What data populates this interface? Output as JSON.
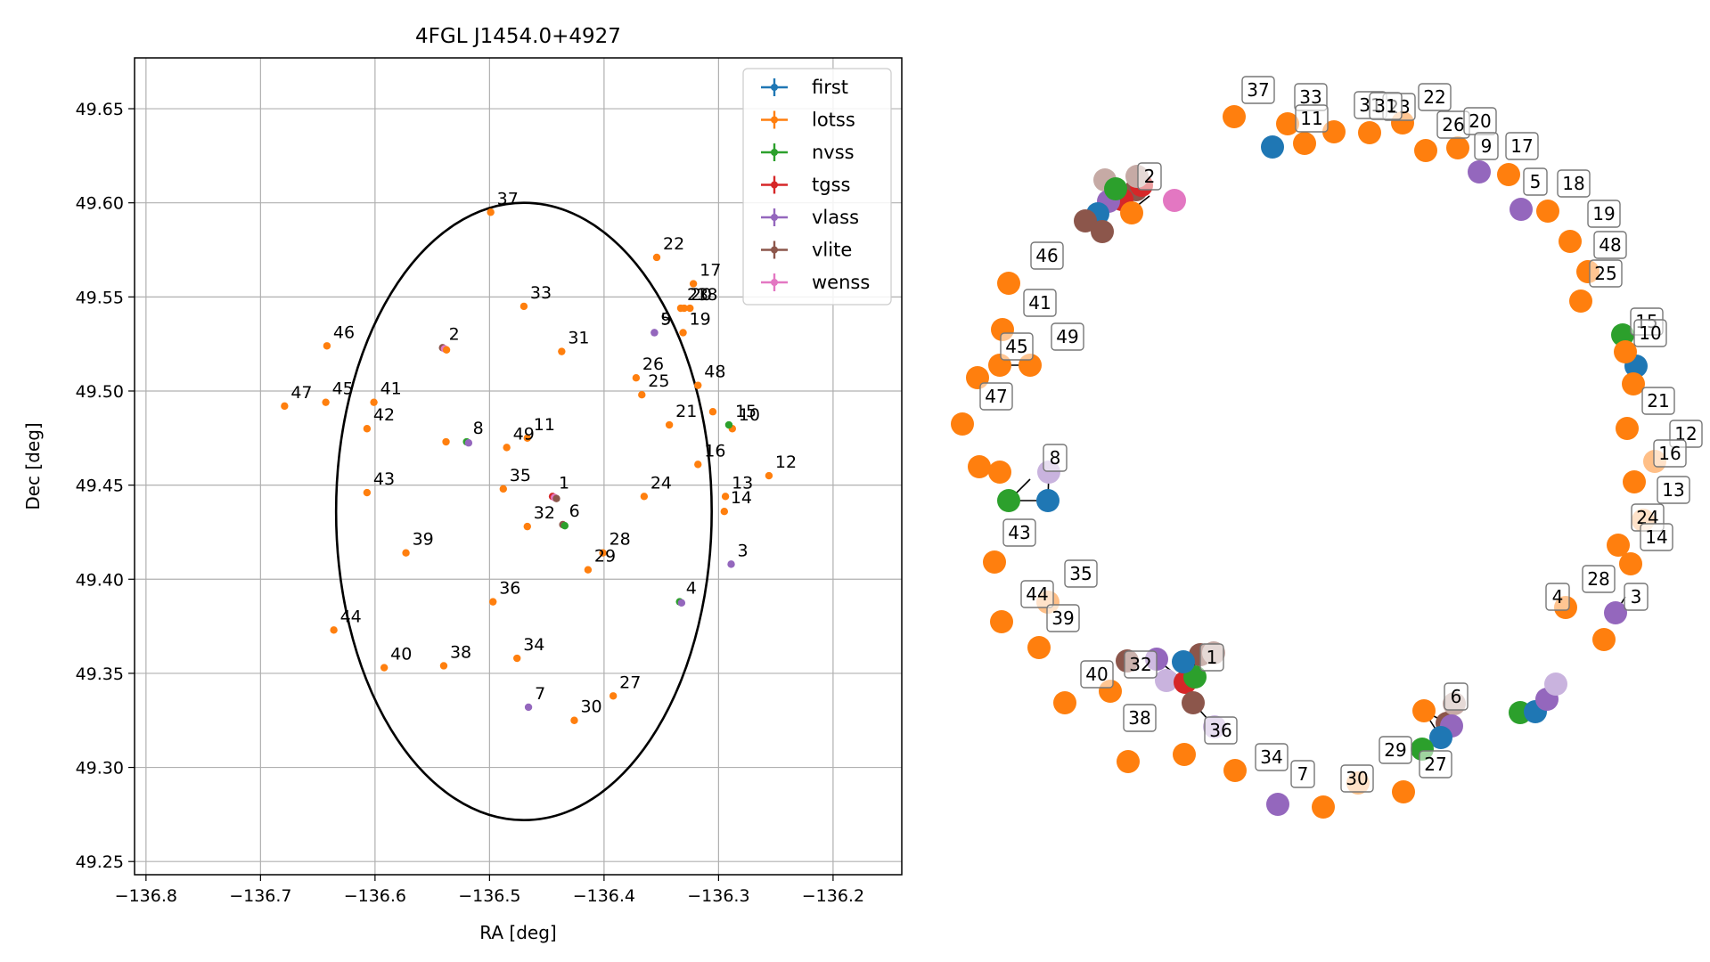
{
  "chart_data": [
    {
      "type": "scatter",
      "title": "4FGL J1454.0+4927",
      "xlabel": "RA [deg]",
      "ylabel": "Dec [deg]",
      "xlim": [
        -136.81,
        -136.14
      ],
      "ylim": [
        49.243,
        49.677
      ],
      "x_ticks": [
        -136.8,
        -136.7,
        -136.6,
        -136.5,
        -136.4,
        -136.3,
        -136.2
      ],
      "x_tick_labels": [
        "−136.8",
        "−136.7",
        "−136.6",
        "−136.5",
        "−136.4",
        "−136.3",
        "−136.2"
      ],
      "y_ticks": [
        49.25,
        49.3,
        49.35,
        49.4,
        49.45,
        49.5,
        49.55,
        49.6,
        49.65
      ],
      "y_tick_labels": [
        "49.25",
        "49.30",
        "49.35",
        "49.40",
        "49.45",
        "49.50",
        "49.55",
        "49.60",
        "49.65"
      ],
      "grid": true,
      "legend_position": "top-right",
      "circle": {
        "center": [
          -136.47,
          49.436
        ],
        "radius_deg": 0.164
      },
      "series": [
        {
          "name": "first",
          "color": "#1f77b4"
        },
        {
          "name": "lotss",
          "color": "#ff7f0e"
        },
        {
          "name": "nvss",
          "color": "#2ca02c"
        },
        {
          "name": "tgss",
          "color": "#d62728"
        },
        {
          "name": "vlass",
          "color": "#9467bd"
        },
        {
          "name": "vlite",
          "color": "#8c564b"
        },
        {
          "name": "wenss",
          "color": "#e377c2"
        }
      ],
      "points": [
        {
          "id": "1",
          "x": -136.445,
          "y": 49.444,
          "series": [
            "tgss",
            "wenss",
            "vlite"
          ]
        },
        {
          "id": "2",
          "x": -136.541,
          "y": 49.523,
          "series": [
            "vlite",
            "wenss",
            "lotss"
          ]
        },
        {
          "id": "3",
          "x": -136.289,
          "y": 49.408,
          "series": [
            "vlass"
          ]
        },
        {
          "id": "4",
          "x": -136.334,
          "y": 49.388,
          "series": [
            "nvss",
            "vlass"
          ]
        },
        {
          "id": "5",
          "x": -136.356,
          "y": 49.531,
          "series": [
            "vlass"
          ]
        },
        {
          "id": "6",
          "x": -136.436,
          "y": 49.429,
          "series": [
            "vlite",
            "nvss"
          ]
        },
        {
          "id": "7",
          "x": -136.466,
          "y": 49.332,
          "series": [
            "vlass"
          ]
        },
        {
          "id": "8",
          "x": -136.52,
          "y": 49.473,
          "series": [
            "nvss",
            "vlass"
          ]
        },
        {
          "id": "9",
          "x": -136.356,
          "y": 49.531,
          "series": [
            "vlass"
          ]
        },
        {
          "id": "10",
          "x": -136.288,
          "y": 49.48,
          "series": [
            "lotss"
          ]
        },
        {
          "id": "11",
          "x": -136.467,
          "y": 49.475,
          "series": [
            "lotss"
          ]
        },
        {
          "id": "12",
          "x": -136.256,
          "y": 49.455,
          "series": [
            "lotss"
          ]
        },
        {
          "id": "13",
          "x": -136.294,
          "y": 49.444,
          "series": [
            "lotss"
          ]
        },
        {
          "id": "14",
          "x": -136.295,
          "y": 49.436,
          "series": [
            "lotss"
          ]
        },
        {
          "id": "15",
          "x": -136.291,
          "y": 49.482,
          "series": [
            "nvss"
          ]
        },
        {
          "id": "16",
          "x": -136.318,
          "y": 49.461,
          "series": [
            "lotss"
          ]
        },
        {
          "id": "17",
          "x": -136.322,
          "y": 49.557,
          "series": [
            "lotss"
          ]
        },
        {
          "id": "18",
          "x": -136.325,
          "y": 49.544,
          "series": [
            "lotss"
          ]
        },
        {
          "id": "19",
          "x": -136.331,
          "y": 49.531,
          "series": [
            "lotss"
          ]
        },
        {
          "id": "20",
          "x": -136.33,
          "y": 49.544,
          "series": [
            "lotss"
          ]
        },
        {
          "id": "21",
          "x": -136.343,
          "y": 49.482,
          "series": [
            "lotss"
          ]
        },
        {
          "id": "22",
          "x": -136.354,
          "y": 49.571,
          "series": [
            "lotss"
          ]
        },
        {
          "id": "23",
          "x": -136.333,
          "y": 49.544,
          "series": [
            "lotss"
          ]
        },
        {
          "id": "24",
          "x": -136.365,
          "y": 49.444,
          "series": [
            "lotss"
          ]
        },
        {
          "id": "25",
          "x": -136.367,
          "y": 49.498,
          "series": [
            "lotss"
          ]
        },
        {
          "id": "26",
          "x": -136.372,
          "y": 49.507,
          "series": [
            "lotss"
          ]
        },
        {
          "id": "27",
          "x": -136.392,
          "y": 49.338,
          "series": [
            "lotss"
          ]
        },
        {
          "id": "28",
          "x": -136.401,
          "y": 49.414,
          "series": [
            "lotss"
          ]
        },
        {
          "id": "29",
          "x": -136.414,
          "y": 49.405,
          "series": [
            "lotss"
          ]
        },
        {
          "id": "30",
          "x": -136.426,
          "y": 49.325,
          "series": [
            "lotss"
          ]
        },
        {
          "id": "31",
          "x": -136.437,
          "y": 49.521,
          "series": [
            "lotss"
          ]
        },
        {
          "id": "32",
          "x": -136.467,
          "y": 49.428,
          "series": [
            "lotss"
          ]
        },
        {
          "id": "33",
          "x": -136.47,
          "y": 49.545,
          "series": [
            "lotss"
          ]
        },
        {
          "id": "34",
          "x": -136.476,
          "y": 49.358,
          "series": [
            "lotss"
          ]
        },
        {
          "id": "35",
          "x": -136.488,
          "y": 49.448,
          "series": [
            "lotss"
          ]
        },
        {
          "id": "36",
          "x": -136.497,
          "y": 49.388,
          "series": [
            "lotss"
          ]
        },
        {
          "id": "37",
          "x": -136.499,
          "y": 49.595,
          "series": [
            "lotss"
          ]
        },
        {
          "id": "38",
          "x": -136.54,
          "y": 49.354,
          "series": [
            "lotss"
          ]
        },
        {
          "id": "39",
          "x": -136.573,
          "y": 49.414,
          "series": [
            "lotss"
          ]
        },
        {
          "id": "40",
          "x": -136.592,
          "y": 49.353,
          "series": [
            "lotss"
          ]
        },
        {
          "id": "41",
          "x": -136.601,
          "y": 49.494,
          "series": [
            "lotss"
          ]
        },
        {
          "id": "42",
          "x": -136.607,
          "y": 49.48,
          "series": [
            "lotss"
          ]
        },
        {
          "id": "43",
          "x": -136.607,
          "y": 49.446,
          "series": [
            "lotss"
          ]
        },
        {
          "id": "44",
          "x": -136.636,
          "y": 49.373,
          "series": [
            "lotss"
          ]
        },
        {
          "id": "45",
          "x": -136.643,
          "y": 49.494,
          "series": [
            "lotss"
          ]
        },
        {
          "id": "46",
          "x": -136.642,
          "y": 49.524,
          "series": [
            "lotss"
          ]
        },
        {
          "id": "47",
          "x": -136.679,
          "y": 49.492,
          "series": [
            "lotss"
          ]
        },
        {
          "id": "48",
          "x": -136.318,
          "y": 49.503,
          "series": [
            "lotss"
          ]
        },
        {
          "id": "49",
          "x": -136.485,
          "y": 49.47,
          "series": [
            "lotss"
          ]
        },
        {
          "id": "",
          "x": -136.538,
          "y": 49.473,
          "series": [
            "lotss"
          ]
        },
        {
          "id": "",
          "x": -136.305,
          "y": 49.489,
          "series": [
            "lotss"
          ]
        }
      ]
    },
    {
      "type": "scatter",
      "title": "",
      "axes": false,
      "labels": [
        "1",
        "2",
        "3",
        "4",
        "5",
        "6",
        "7",
        "8",
        "9",
        "10",
        "11",
        "12",
        "13",
        "14",
        "15",
        "16",
        "17",
        "18",
        "19",
        "20",
        "21",
        "22",
        "23",
        "24",
        "25",
        "26",
        "27",
        "28",
        "29",
        "30",
        "31",
        "32",
        "33",
        "34",
        "35",
        "36",
        "37",
        "38",
        "39",
        "40",
        "41",
        "42",
        "43",
        "44",
        "45",
        "46",
        "47",
        "48",
        "49"
      ]
    }
  ]
}
